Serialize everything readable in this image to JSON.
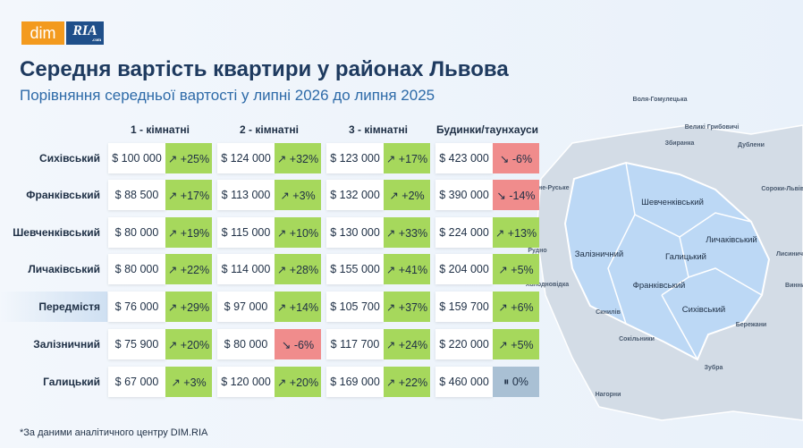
{
  "logo": {
    "dim": "dim",
    "ria": "RIA",
    "com": ".com"
  },
  "header": {
    "title": "Середня вартість квартири у районах Львова",
    "subtitle": "Порівняння середньої вартості у липні 2026 до липня 2025"
  },
  "table": {
    "columns": [
      "1 - кімнатні",
      "2 - кімнатні",
      "3 - кімнатні",
      "Будинки/таунхауси"
    ],
    "rows": [
      {
        "district": "Сихівський",
        "cells": [
          {
            "price": "$ 100 000",
            "change": "↗ +25%",
            "color": "#a6d85c"
          },
          {
            "price": "$ 124 000",
            "change": "↗ +32%",
            "color": "#a6d85c"
          },
          {
            "price": "$ 123 000",
            "change": "↗ +17%",
            "color": "#a6d85c"
          },
          {
            "price": "$ 423 000",
            "change": "↘ -6%",
            "color": "#f08c8c"
          }
        ]
      },
      {
        "district": "Франківський",
        "cells": [
          {
            "price": "$ 88 500",
            "change": "↗ +17%",
            "color": "#a6d85c"
          },
          {
            "price": "$ 113 000",
            "change": "↗ +3%",
            "color": "#a6d85c"
          },
          {
            "price": "$ 132 000",
            "change": "↗ +2%",
            "color": "#a6d85c"
          },
          {
            "price": "$ 390 000",
            "change": "↘ -14%",
            "color": "#f08c8c"
          }
        ]
      },
      {
        "district": "Шевченківський",
        "cells": [
          {
            "price": "$ 80 000",
            "change": "↗ +19%",
            "color": "#a6d85c"
          },
          {
            "price": "$ 115 000",
            "change": "↗ +10%",
            "color": "#a6d85c"
          },
          {
            "price": "$ 130 000",
            "change": "↗ +33%",
            "color": "#a6d85c"
          },
          {
            "price": "$ 224 000",
            "change": "↗ +13%",
            "color": "#a6d85c"
          }
        ]
      },
      {
        "district": "Личаківський",
        "cells": [
          {
            "price": "$ 80 000",
            "change": "↗ +22%",
            "color": "#a6d85c"
          },
          {
            "price": "$ 114 000",
            "change": "↗ +28%",
            "color": "#a6d85c"
          },
          {
            "price": "$ 155 000",
            "change": "↗ +41%",
            "color": "#a6d85c"
          },
          {
            "price": "$ 204 000",
            "change": "↗ +5%",
            "color": "#a6d85c"
          }
        ]
      },
      {
        "district": "Передмістя",
        "highlight": true,
        "cells": [
          {
            "price": "$ 76 000",
            "change": "↗ +29%",
            "color": "#a6d85c"
          },
          {
            "price": "$ 97 000",
            "change": "↗ +14%",
            "color": "#a6d85c"
          },
          {
            "price": "$ 105 700",
            "change": "↗ +37%",
            "color": "#a6d85c"
          },
          {
            "price": "$ 159 700",
            "change": "↗ +6%",
            "color": "#a6d85c"
          }
        ]
      },
      {
        "district": "Залізничний",
        "cells": [
          {
            "price": "$ 75 900",
            "change": "↗ +20%",
            "color": "#a6d85c"
          },
          {
            "price": "$ 80 000",
            "change": "↘ -6%",
            "color": "#f08c8c"
          },
          {
            "price": "$ 117 700",
            "change": "↗ +24%",
            "color": "#a6d85c"
          },
          {
            "price": "$ 220 000",
            "change": "↗ +5%",
            "color": "#a6d85c"
          }
        ]
      },
      {
        "district": "Галицький",
        "cells": [
          {
            "price": "$ 67 000",
            "change": "↗ +3%",
            "color": "#a6d85c"
          },
          {
            "price": "$ 120 000",
            "change": "↗ +20%",
            "color": "#a6d85c"
          },
          {
            "price": "$ 169 000",
            "change": "↗ +22%",
            "color": "#a6d85c"
          },
          {
            "price": "$ 460 000",
            "change": "⏸ 0%",
            "color": "#a9c0d4"
          }
        ]
      }
    ]
  },
  "footnote": "*За даними аналітичного центру DIM.RIA",
  "map": {
    "districts": [
      "Шевченківський",
      "Личаківський",
      "Залізничний",
      "Галицький",
      "Франківський",
      "Сихівський"
    ],
    "places": [
      "Воля-Гомулецька",
      "Великі Грибовичі",
      "Збиранка",
      "Дублени",
      "Сороки-Львівські",
      "Рясне-Руське",
      "Рудно",
      "Холодновідка",
      "Лисиничі",
      "Винники",
      "Скнилів",
      "Бережани",
      "Сокільники",
      "Зубра",
      "Нагорни"
    ]
  }
}
